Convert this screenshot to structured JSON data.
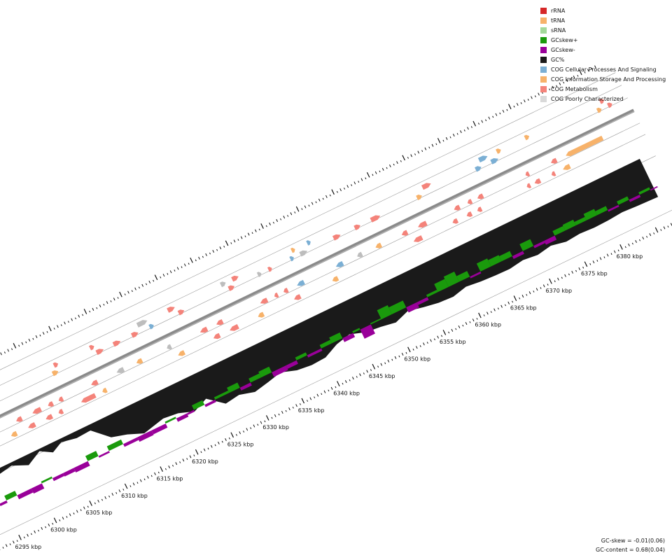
{
  "legend": [
    {
      "label": "rRNA",
      "color": "#d62728"
    },
    {
      "label": "tRNA",
      "color": "#f7b26a"
    },
    {
      "label": "sRNA",
      "color": "#a3d99a"
    },
    {
      "label": "GCskew+",
      "color": "#1a9a0c"
    },
    {
      "label": "GCskew-",
      "color": "#990099"
    },
    {
      "label": "GC%",
      "color": "#1a1a1a"
    },
    {
      "label": "COG Cellular Processes And Signaling",
      "color": "#7bafd4"
    },
    {
      "label": "COG Information Storage And Processing",
      "color": "#f7b26a"
    },
    {
      "label": "COG Metabolism",
      "color": "#f4837a"
    },
    {
      "label": "COG Poorly Characterized",
      "color": "#d9d9d9"
    }
  ],
  "stats": {
    "gc_skew": "GC-skew = -0.01(0.06)",
    "gc_content": "GC-content = 0.68(0.04)"
  },
  "chart_data": {
    "type": "genome_map_segment",
    "range_kbp": [
      6292,
      6387
    ],
    "ticks": [
      {
        "kbp": 6295,
        "label": "6295 kbp"
      },
      {
        "kbp": 6300,
        "label": "6300 kbp"
      },
      {
        "kbp": 6305,
        "label": "6305 kbp"
      },
      {
        "kbp": 6310,
        "label": "6310 kbp"
      },
      {
        "kbp": 6315,
        "label": "6315 kbp"
      },
      {
        "kbp": 6320,
        "label": "6320 kbp"
      },
      {
        "kbp": 6325,
        "label": "6325 kbp"
      },
      {
        "kbp": 6330,
        "label": "6330 kbp"
      },
      {
        "kbp": 6335,
        "label": "6335 kbp"
      },
      {
        "kbp": 6340,
        "label": "6340 kbp"
      },
      {
        "kbp": 6345,
        "label": "6345 kbp"
      },
      {
        "kbp": 6350,
        "label": "6350 kbp"
      },
      {
        "kbp": 6355,
        "label": "6355 kbp"
      },
      {
        "kbp": 6360,
        "label": "6360 kbp"
      },
      {
        "kbp": 6365,
        "label": "6365 kbp"
      },
      {
        "kbp": 6370,
        "label": "6370 kbp"
      },
      {
        "kbp": 6375,
        "label": "6375 kbp"
      },
      {
        "kbp": 6380,
        "label": "6380 kbp"
      }
    ],
    "features": [
      {
        "kbp": 6293.5,
        "len": 0.6,
        "strand": "-",
        "cog": "poorly"
      },
      {
        "kbp": 6294.3,
        "len": 0.6,
        "strand": "-",
        "cog": "poorly"
      },
      {
        "kbp": 6296.0,
        "len": 2.8,
        "strand": "+",
        "cog": "poorly"
      },
      {
        "kbp": 6299.2,
        "len": 0.8,
        "strand": "+",
        "cog": "metabolism"
      },
      {
        "kbp": 6299.6,
        "len": 0.8,
        "strand": "-",
        "cog": "information"
      },
      {
        "kbp": 6301.0,
        "len": 0.8,
        "strand": "-",
        "cog": "metabolism"
      },
      {
        "kbp": 6302.0,
        "len": 1.0,
        "strand": "-",
        "cog": "metabolism"
      },
      {
        "kbp": 6303.3,
        "len": 1.2,
        "strand": "-",
        "cog": "metabolism"
      },
      {
        "kbp": 6304.5,
        "len": 0.9,
        "strand": "-",
        "cog": "metabolism"
      },
      {
        "kbp": 6305.5,
        "len": 0.7,
        "strand": "-",
        "cog": "metabolism"
      },
      {
        "kbp": 6306.3,
        "len": 0.6,
        "strand": "-",
        "cog": "metabolism"
      },
      {
        "kbp": 6307.0,
        "len": 0.6,
        "strand": "-",
        "cog": "metabolism"
      },
      {
        "kbp": 6307.8,
        "len": 0.8,
        "strand": "+",
        "cog": "information"
      },
      {
        "kbp": 6308.4,
        "len": 0.6,
        "strand": "+",
        "cog": "metabolism"
      },
      {
        "kbp": 6309.5,
        "len": 2.0,
        "strand": "-",
        "cog": "metabolism"
      },
      {
        "kbp": 6311.6,
        "len": 0.9,
        "strand": "-",
        "cog": "metabolism"
      },
      {
        "kbp": 6312.5,
        "len": 0.6,
        "strand": "-",
        "cog": "information"
      },
      {
        "kbp": 6313.5,
        "len": 0.6,
        "strand": "+",
        "cog": "metabolism"
      },
      {
        "kbp": 6314.0,
        "len": 1.0,
        "strand": "+",
        "cog": "metabolism"
      },
      {
        "kbp": 6315.2,
        "len": 1.0,
        "strand": "-",
        "cog": "poorly"
      },
      {
        "kbp": 6316.4,
        "len": 1.0,
        "strand": "+",
        "cog": "metabolism"
      },
      {
        "kbp": 6318.0,
        "len": 0.8,
        "strand": "-",
        "cog": "information"
      },
      {
        "kbp": 6319.0,
        "len": 0.9,
        "strand": "+",
        "cog": "metabolism"
      },
      {
        "kbp": 6320.2,
        "len": 1.4,
        "strand": "+",
        "cog": "poorly"
      },
      {
        "kbp": 6321.5,
        "len": 0.6,
        "strand": "+",
        "cog": "cellular"
      },
      {
        "kbp": 6322.3,
        "len": 0.6,
        "strand": "-",
        "cog": "poorly"
      },
      {
        "kbp": 6323.2,
        "len": 0.9,
        "strand": "-",
        "cog": "information"
      },
      {
        "kbp": 6324.5,
        "len": 1.0,
        "strand": "+",
        "cog": "metabolism"
      },
      {
        "kbp": 6325.6,
        "len": 0.8,
        "strand": "+",
        "cog": "metabolism"
      },
      {
        "kbp": 6327.0,
        "len": 1.0,
        "strand": "-",
        "cog": "metabolism"
      },
      {
        "kbp": 6328.2,
        "len": 0.9,
        "strand": "-",
        "cog": "metabolism"
      },
      {
        "kbp": 6329.3,
        "len": 0.9,
        "strand": "-",
        "cog": "metabolism"
      },
      {
        "kbp": 6330.5,
        "len": 1.2,
        "strand": "-",
        "cog": "metabolism"
      },
      {
        "kbp": 6332.0,
        "len": 0.7,
        "strand": "+",
        "cog": "poorly"
      },
      {
        "kbp": 6332.7,
        "len": 0.8,
        "strand": "+",
        "cog": "metabolism"
      },
      {
        "kbp": 6333.6,
        "len": 0.9,
        "strand": "+",
        "cog": "metabolism"
      },
      {
        "kbp": 6334.5,
        "len": 0.8,
        "strand": "-",
        "cog": "information"
      },
      {
        "kbp": 6335.5,
        "len": 1.0,
        "strand": "-",
        "cog": "metabolism"
      },
      {
        "kbp": 6336.8,
        "len": 0.5,
        "strand": "+",
        "cog": "poorly"
      },
      {
        "kbp": 6337.5,
        "len": 0.5,
        "strand": "-",
        "cog": "metabolism"
      },
      {
        "kbp": 6338.3,
        "len": 0.5,
        "strand": "+",
        "cog": "metabolism"
      },
      {
        "kbp": 6338.8,
        "len": 0.6,
        "strand": "-",
        "cog": "metabolism"
      },
      {
        "kbp": 6339.6,
        "len": 0.9,
        "strand": "-",
        "cog": "metabolism"
      },
      {
        "kbp": 6340.7,
        "len": 1.0,
        "strand": "-",
        "cog": "cellular"
      },
      {
        "kbp": 6341.4,
        "len": 0.5,
        "strand": "+",
        "cog": "cellular"
      },
      {
        "kbp": 6342.0,
        "len": 0.5,
        "strand": "+",
        "cog": "information"
      },
      {
        "kbp": 6342.8,
        "len": 1.0,
        "strand": "+",
        "cog": "poorly"
      },
      {
        "kbp": 6344.2,
        "len": 0.5,
        "strand": "+",
        "cog": "cellular"
      },
      {
        "kbp": 6345.0,
        "len": 0.8,
        "strand": "-",
        "cog": "information"
      },
      {
        "kbp": 6346.2,
        "len": 1.0,
        "strand": "-",
        "cog": "cellular"
      },
      {
        "kbp": 6347.5,
        "len": 1.0,
        "strand": "+",
        "cog": "metabolism"
      },
      {
        "kbp": 6349.2,
        "len": 0.7,
        "strand": "-",
        "cog": "poorly"
      },
      {
        "kbp": 6350.5,
        "len": 0.8,
        "strand": "+",
        "cog": "metabolism"
      },
      {
        "kbp": 6351.8,
        "len": 0.8,
        "strand": "-",
        "cog": "information"
      },
      {
        "kbp": 6352.8,
        "len": 1.3,
        "strand": "+",
        "cog": "metabolism"
      },
      {
        "kbp": 6355.5,
        "len": 0.8,
        "strand": "-",
        "cog": "metabolism"
      },
      {
        "kbp": 6356.5,
        "len": 1.2,
        "strand": "-",
        "cog": "metabolism"
      },
      {
        "kbp": 6357.8,
        "len": 1.2,
        "strand": "-",
        "cog": "metabolism"
      },
      {
        "kbp": 6359.3,
        "len": 0.7,
        "strand": "+",
        "cog": "information"
      },
      {
        "kbp": 6360.5,
        "len": 1.2,
        "strand": "+",
        "cog": "metabolism"
      },
      {
        "kbp": 6362.0,
        "len": 0.7,
        "strand": "-",
        "cog": "metabolism"
      },
      {
        "kbp": 6362.9,
        "len": 0.8,
        "strand": "-",
        "cog": "metabolism"
      },
      {
        "kbp": 6364.0,
        "len": 0.7,
        "strand": "-",
        "cog": "metabolism"
      },
      {
        "kbp": 6364.8,
        "len": 0.6,
        "strand": "-",
        "cog": "metabolism"
      },
      {
        "kbp": 6365.5,
        "len": 0.6,
        "strand": "-",
        "cog": "metabolism"
      },
      {
        "kbp": 6366.2,
        "len": 0.8,
        "strand": "-",
        "cog": "metabolism"
      },
      {
        "kbp": 6367.6,
        "len": 0.8,
        "strand": "+",
        "cog": "cellular"
      },
      {
        "kbp": 6368.5,
        "len": 1.2,
        "strand": "+",
        "cog": "cellular"
      },
      {
        "kbp": 6369.8,
        "len": 1.0,
        "strand": "+",
        "cog": "cellular"
      },
      {
        "kbp": 6371.0,
        "len": 0.6,
        "strand": "+",
        "cog": "information"
      },
      {
        "kbp": 6372.5,
        "len": 0.5,
        "strand": "-",
        "cog": "metabolism"
      },
      {
        "kbp": 6373.0,
        "len": 0.5,
        "strand": "-",
        "cog": "metabolism"
      },
      {
        "kbp": 6373.6,
        "len": 0.8,
        "strand": "-",
        "cog": "metabolism"
      },
      {
        "kbp": 6375.0,
        "len": 0.6,
        "strand": "+",
        "cog": "information"
      },
      {
        "kbp": 6376.0,
        "len": 0.5,
        "strand": "-",
        "cog": "metabolism"
      },
      {
        "kbp": 6376.6,
        "len": 0.8,
        "strand": "-",
        "cog": "metabolism"
      },
      {
        "kbp": 6377.6,
        "len": 1.0,
        "strand": "-",
        "cog": "information"
      },
      {
        "kbp": 6378.7,
        "len": 5.2,
        "strand": "-",
        "cog": "information"
      },
      {
        "kbp": 6384.8,
        "len": 0.6,
        "strand": "+",
        "cog": "information"
      },
      {
        "kbp": 6385.6,
        "len": 0.6,
        "strand": "+",
        "cog": "metabolism"
      },
      {
        "kbp": 6386.3,
        "len": 0.6,
        "strand": "+",
        "cog": "metabolism"
      }
    ],
    "gc_percent_track": [
      {
        "kbp": 6292,
        "v": 0.92
      },
      {
        "kbp": 6296,
        "v": 0.9
      },
      {
        "kbp": 6298,
        "v": 0.96
      },
      {
        "kbp": 6300,
        "v": 0.8
      },
      {
        "kbp": 6302,
        "v": 0.98
      },
      {
        "kbp": 6303.5,
        "v": 0.82
      },
      {
        "kbp": 6305,
        "v": 0.95
      },
      {
        "kbp": 6307,
        "v": 0.88
      },
      {
        "kbp": 6309,
        "v": 0.9
      },
      {
        "kbp": 6311,
        "v": 0.55
      },
      {
        "kbp": 6313,
        "v": 0.45
      },
      {
        "kbp": 6315,
        "v": 0.3
      },
      {
        "kbp": 6318,
        "v": 0.42
      },
      {
        "kbp": 6320,
        "v": 0.38
      },
      {
        "kbp": 6322,
        "v": 0.25
      },
      {
        "kbp": 6324,
        "v": 0.4
      },
      {
        "kbp": 6326,
        "v": 0.1
      },
      {
        "kbp": 6328,
        "v": 0.15
      },
      {
        "kbp": 6330,
        "v": 0.05
      },
      {
        "kbp": 6332,
        "v": 0.12
      },
      {
        "kbp": 6334,
        "v": 0.2
      },
      {
        "kbp": 6336,
        "v": 0.08
      },
      {
        "kbp": 6338,
        "v": 0.04
      },
      {
        "kbp": 6340,
        "v": 0.06
      },
      {
        "kbp": 6342,
        "v": 0.22
      },
      {
        "kbp": 6344,
        "v": 0.3
      },
      {
        "kbp": 6346,
        "v": 0.18
      },
      {
        "kbp": 6348,
        "v": 0.14
      },
      {
        "kbp": 6350,
        "v": 0.08
      },
      {
        "kbp": 6352,
        "v": 0.2
      },
      {
        "kbp": 6354,
        "v": 0.12
      },
      {
        "kbp": 6356,
        "v": 0.06
      },
      {
        "kbp": 6358,
        "v": 0.04
      },
      {
        "kbp": 6360,
        "v": 0.12
      },
      {
        "kbp": 6362,
        "v": 0.08
      },
      {
        "kbp": 6364,
        "v": 0.06
      },
      {
        "kbp": 6366,
        "v": 0.05
      },
      {
        "kbp": 6368,
        "v": 0.1
      },
      {
        "kbp": 6370,
        "v": 0.06
      },
      {
        "kbp": 6372,
        "v": 0.12
      },
      {
        "kbp": 6374,
        "v": 0.05
      },
      {
        "kbp": 6376,
        "v": 0.08
      },
      {
        "kbp": 6378,
        "v": 0.06
      },
      {
        "kbp": 6380,
        "v": 0.07
      },
      {
        "kbp": 6382,
        "v": 0.1
      },
      {
        "kbp": 6384,
        "v": 0.08
      },
      {
        "kbp": 6387,
        "v": 0.06
      }
    ],
    "gc_skew_track": [
      {
        "kbp": 6292,
        "v": -0.5
      },
      {
        "kbp": 6293,
        "v": 0.6
      },
      {
        "kbp": 6294.5,
        "v": -0.4
      },
      {
        "kbp": 6295.5,
        "v": 0.8
      },
      {
        "kbp": 6297,
        "v": -0.7
      },
      {
        "kbp": 6299,
        "v": -0.9
      },
      {
        "kbp": 6300.5,
        "v": 0.3
      },
      {
        "kbp": 6302,
        "v": -0.5
      },
      {
        "kbp": 6303.5,
        "v": -0.6
      },
      {
        "kbp": 6305,
        "v": -0.8
      },
      {
        "kbp": 6307,
        "v": 0.9
      },
      {
        "kbp": 6308.5,
        "v": -0.3
      },
      {
        "kbp": 6310,
        "v": 0.8
      },
      {
        "kbp": 6312,
        "v": -0.5
      },
      {
        "kbp": 6314,
        "v": -0.8
      },
      {
        "kbp": 6316,
        "v": -0.7
      },
      {
        "kbp": 6318,
        "v": 0.3
      },
      {
        "kbp": 6319.5,
        "v": -0.6
      },
      {
        "kbp": 6321,
        "v": -0.3
      },
      {
        "kbp": 6322,
        "v": 0.8
      },
      {
        "kbp": 6323.5,
        "v": -0.4
      },
      {
        "kbp": 6325,
        "v": 0.4
      },
      {
        "kbp": 6327,
        "v": 0.9
      },
      {
        "kbp": 6328.5,
        "v": -0.5
      },
      {
        "kbp": 6330,
        "v": 0.7
      },
      {
        "kbp": 6331.5,
        "v": 1.0
      },
      {
        "kbp": 6333,
        "v": -0.8
      },
      {
        "kbp": 6335,
        "v": -0.6
      },
      {
        "kbp": 6336.5,
        "v": 0.5
      },
      {
        "kbp": 6338,
        "v": -0.4
      },
      {
        "kbp": 6340,
        "v": 0.6
      },
      {
        "kbp": 6341.5,
        "v": 1.0
      },
      {
        "kbp": 6343,
        "v": -0.7
      },
      {
        "kbp": 6344.5,
        "v": 0.3
      },
      {
        "kbp": 6345.5,
        "v": -1.6
      },
      {
        "kbp": 6347,
        "v": 0.2
      },
      {
        "kbp": 6348.5,
        "v": 1.6
      },
      {
        "kbp": 6350,
        "v": 1.2
      },
      {
        "kbp": 6352,
        "v": -0.9
      },
      {
        "kbp": 6353.5,
        "v": -0.5
      },
      {
        "kbp": 6355,
        "v": 0.4
      },
      {
        "kbp": 6356.5,
        "v": 1.4
      },
      {
        "kbp": 6358,
        "v": 1.8
      },
      {
        "kbp": 6359.5,
        "v": 1.0
      },
      {
        "kbp": 6361,
        "v": -0.3
      },
      {
        "kbp": 6362.5,
        "v": 1.4
      },
      {
        "kbp": 6364,
        "v": 1.1
      },
      {
        "kbp": 6365.5,
        "v": 0.9
      },
      {
        "kbp": 6367,
        "v": -0.5
      },
      {
        "kbp": 6368.5,
        "v": 1.2
      },
      {
        "kbp": 6370,
        "v": -0.4
      },
      {
        "kbp": 6371.5,
        "v": -0.7
      },
      {
        "kbp": 6373,
        "v": 0.8
      },
      {
        "kbp": 6374.5,
        "v": 1.0
      },
      {
        "kbp": 6376,
        "v": 0.6
      },
      {
        "kbp": 6377.5,
        "v": 1.1
      },
      {
        "kbp": 6379,
        "v": 0.7
      },
      {
        "kbp": 6380.5,
        "v": -0.3
      },
      {
        "kbp": 6382,
        "v": 0.6
      },
      {
        "kbp": 6383.5,
        "v": -0.4
      },
      {
        "kbp": 6385,
        "v": 0.4
      },
      {
        "kbp": 6386.5,
        "v": -0.2
      }
    ]
  }
}
